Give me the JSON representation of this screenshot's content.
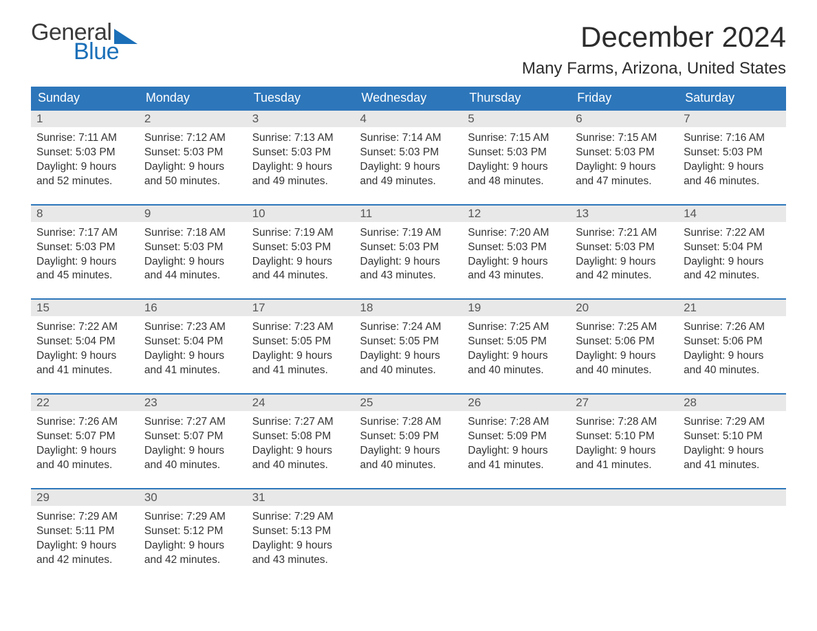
{
  "brand": {
    "word1": "General",
    "word2": "Blue",
    "triangle_color": "#1a6fb8",
    "text_dark": "#3a3a3a"
  },
  "title": "December 2024",
  "location": "Many Farms, Arizona, United States",
  "colors": {
    "header_bg": "#2d76ba",
    "header_text": "#ffffff",
    "row_border": "#2d76ba",
    "daynum_bg": "#e8e8e8",
    "daynum_text": "#555555",
    "body_text": "#333333",
    "page_bg": "#ffffff"
  },
  "fonts": {
    "title_size": 42,
    "location_size": 24,
    "header_size": 18,
    "cell_size": 15.5
  },
  "columns": [
    "Sunday",
    "Monday",
    "Tuesday",
    "Wednesday",
    "Thursday",
    "Friday",
    "Saturday"
  ],
  "weeks": [
    [
      {
        "n": "1",
        "sunrise": "7:11 AM",
        "sunset": "5:03 PM",
        "dh": "9",
        "dm": "52"
      },
      {
        "n": "2",
        "sunrise": "7:12 AM",
        "sunset": "5:03 PM",
        "dh": "9",
        "dm": "50"
      },
      {
        "n": "3",
        "sunrise": "7:13 AM",
        "sunset": "5:03 PM",
        "dh": "9",
        "dm": "49"
      },
      {
        "n": "4",
        "sunrise": "7:14 AM",
        "sunset": "5:03 PM",
        "dh": "9",
        "dm": "49"
      },
      {
        "n": "5",
        "sunrise": "7:15 AM",
        "sunset": "5:03 PM",
        "dh": "9",
        "dm": "48"
      },
      {
        "n": "6",
        "sunrise": "7:15 AM",
        "sunset": "5:03 PM",
        "dh": "9",
        "dm": "47"
      },
      {
        "n": "7",
        "sunrise": "7:16 AM",
        "sunset": "5:03 PM",
        "dh": "9",
        "dm": "46"
      }
    ],
    [
      {
        "n": "8",
        "sunrise": "7:17 AM",
        "sunset": "5:03 PM",
        "dh": "9",
        "dm": "45"
      },
      {
        "n": "9",
        "sunrise": "7:18 AM",
        "sunset": "5:03 PM",
        "dh": "9",
        "dm": "44"
      },
      {
        "n": "10",
        "sunrise": "7:19 AM",
        "sunset": "5:03 PM",
        "dh": "9",
        "dm": "44"
      },
      {
        "n": "11",
        "sunrise": "7:19 AM",
        "sunset": "5:03 PM",
        "dh": "9",
        "dm": "43"
      },
      {
        "n": "12",
        "sunrise": "7:20 AM",
        "sunset": "5:03 PM",
        "dh": "9",
        "dm": "43"
      },
      {
        "n": "13",
        "sunrise": "7:21 AM",
        "sunset": "5:03 PM",
        "dh": "9",
        "dm": "42"
      },
      {
        "n": "14",
        "sunrise": "7:22 AM",
        "sunset": "5:04 PM",
        "dh": "9",
        "dm": "42"
      }
    ],
    [
      {
        "n": "15",
        "sunrise": "7:22 AM",
        "sunset": "5:04 PM",
        "dh": "9",
        "dm": "41"
      },
      {
        "n": "16",
        "sunrise": "7:23 AM",
        "sunset": "5:04 PM",
        "dh": "9",
        "dm": "41"
      },
      {
        "n": "17",
        "sunrise": "7:23 AM",
        "sunset": "5:05 PM",
        "dh": "9",
        "dm": "41"
      },
      {
        "n": "18",
        "sunrise": "7:24 AM",
        "sunset": "5:05 PM",
        "dh": "9",
        "dm": "40"
      },
      {
        "n": "19",
        "sunrise": "7:25 AM",
        "sunset": "5:05 PM",
        "dh": "9",
        "dm": "40"
      },
      {
        "n": "20",
        "sunrise": "7:25 AM",
        "sunset": "5:06 PM",
        "dh": "9",
        "dm": "40"
      },
      {
        "n": "21",
        "sunrise": "7:26 AM",
        "sunset": "5:06 PM",
        "dh": "9",
        "dm": "40"
      }
    ],
    [
      {
        "n": "22",
        "sunrise": "7:26 AM",
        "sunset": "5:07 PM",
        "dh": "9",
        "dm": "40"
      },
      {
        "n": "23",
        "sunrise": "7:27 AM",
        "sunset": "5:07 PM",
        "dh": "9",
        "dm": "40"
      },
      {
        "n": "24",
        "sunrise": "7:27 AM",
        "sunset": "5:08 PM",
        "dh": "9",
        "dm": "40"
      },
      {
        "n": "25",
        "sunrise": "7:28 AM",
        "sunset": "5:09 PM",
        "dh": "9",
        "dm": "40"
      },
      {
        "n": "26",
        "sunrise": "7:28 AM",
        "sunset": "5:09 PM",
        "dh": "9",
        "dm": "41"
      },
      {
        "n": "27",
        "sunrise": "7:28 AM",
        "sunset": "5:10 PM",
        "dh": "9",
        "dm": "41"
      },
      {
        "n": "28",
        "sunrise": "7:29 AM",
        "sunset": "5:10 PM",
        "dh": "9",
        "dm": "41"
      }
    ],
    [
      {
        "n": "29",
        "sunrise": "7:29 AM",
        "sunset": "5:11 PM",
        "dh": "9",
        "dm": "42"
      },
      {
        "n": "30",
        "sunrise": "7:29 AM",
        "sunset": "5:12 PM",
        "dh": "9",
        "dm": "42"
      },
      {
        "n": "31",
        "sunrise": "7:29 AM",
        "sunset": "5:13 PM",
        "dh": "9",
        "dm": "43"
      },
      null,
      null,
      null,
      null
    ]
  ],
  "labels": {
    "sunrise_prefix": "Sunrise: ",
    "sunset_prefix": "Sunset: ",
    "daylight_prefix": "Daylight: ",
    "hours_word": " hours",
    "and_word": "and ",
    "minutes_word": " minutes."
  }
}
